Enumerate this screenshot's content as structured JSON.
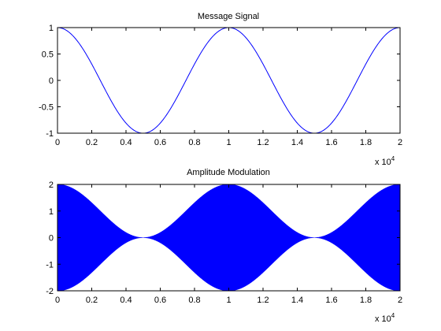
{
  "chart_data": [
    {
      "type": "line",
      "title": "Message Signal",
      "xlim": [
        0,
        2
      ],
      "ylim": [
        -1,
        1
      ],
      "xticks": [
        "0",
        "0.2",
        "0.4",
        "0.6",
        "0.8",
        "1",
        "1.2",
        "1.4",
        "1.6",
        "1.8",
        "2"
      ],
      "yticks": [
        "-1",
        "-0.5",
        "0",
        "0.5",
        "1"
      ],
      "x_exponent_label": "x 10",
      "x_exponent_power": "4",
      "series": [
        {
          "function": "cos",
          "amplitude": 1,
          "period": 1,
          "color": "#0000ff"
        }
      ]
    },
    {
      "type": "area",
      "title": "Amplitude Modulation",
      "xlim": [
        0,
        2
      ],
      "ylim": [
        -2,
        2
      ],
      "xticks": [
        "0",
        "0.2",
        "0.4",
        "0.6",
        "0.8",
        "1",
        "1.2",
        "1.4",
        "1.6",
        "1.8",
        "2"
      ],
      "yticks": [
        "-2",
        "-1",
        "0",
        "1",
        "2"
      ],
      "x_exponent_label": "x 10",
      "x_exponent_power": "4",
      "series": [
        {
          "function": "1+cos envelope",
          "envelope_max": 2,
          "envelope_min": 0,
          "period": 1,
          "color": "#0000ff"
        }
      ]
    }
  ]
}
